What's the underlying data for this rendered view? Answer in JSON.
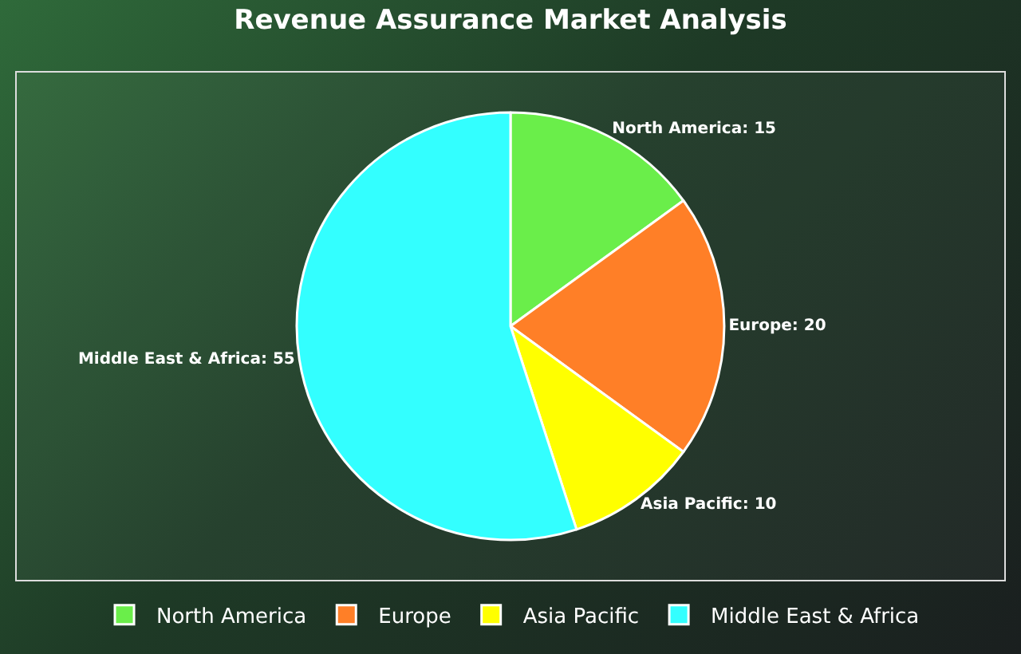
{
  "chart_data": {
    "type": "pie",
    "title": "Revenue Assurance Market Analysis",
    "categories": [
      "North America",
      "Europe",
      "Asia Pacific",
      "Middle East & Africa"
    ],
    "values": [
      15,
      20,
      10,
      55
    ],
    "value_labels": [
      "North America: 15",
      "Europe: 20",
      "Asia Pacific: 10",
      "Middle East & Africa: 55"
    ],
    "colors": [
      "#6aee4a",
      "#ff7f27",
      "#ffff00",
      "#33ffff"
    ],
    "legend": "bottom"
  }
}
